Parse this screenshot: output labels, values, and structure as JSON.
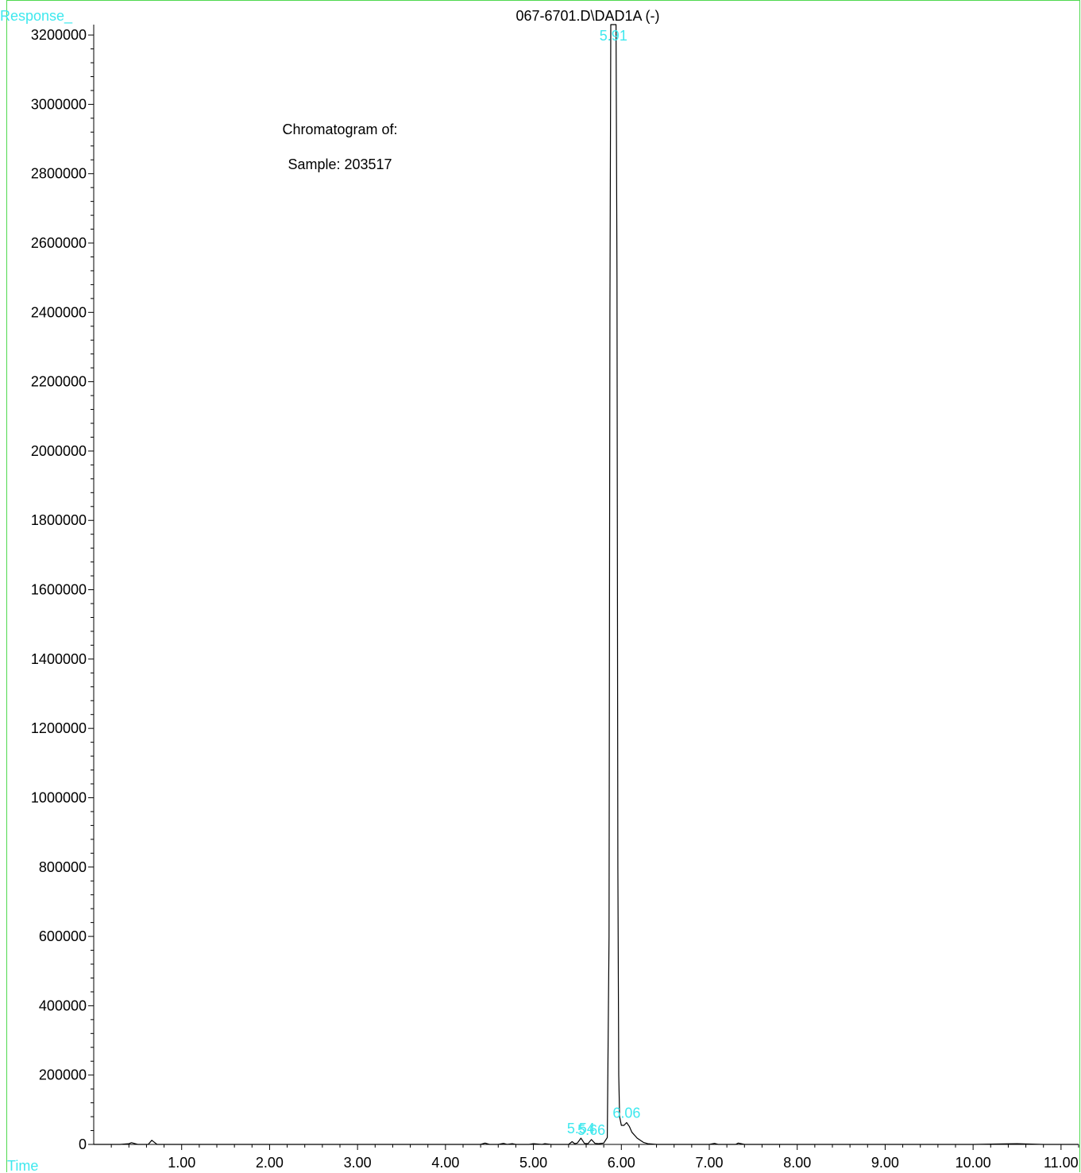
{
  "colors": {
    "frame": "#4ed94e",
    "axis_label": "#3ee8ee",
    "trace": "#000000",
    "peak_label": "#3ee8ee"
  },
  "chart_data": {
    "type": "line",
    "title": "067-6701.D\\DAD1A (-)",
    "ylabel": "Response_",
    "xlabel": "Time",
    "xlim": [
      0,
      11.2
    ],
    "ylim": [
      0,
      3230000
    ],
    "x_ticks": [
      "1.00",
      "2.00",
      "3.00",
      "4.00",
      "5.00",
      "6.00",
      "7.00",
      "8.00",
      "9.00",
      "10.00",
      "11.00"
    ],
    "y_ticks": [
      "0",
      "200000",
      "400000",
      "600000",
      "800000",
      "1000000",
      "1200000",
      "1400000",
      "1600000",
      "1800000",
      "2000000",
      "2200000",
      "2400000",
      "2600000",
      "2800000",
      "3000000",
      "3200000"
    ],
    "annotations": [
      "Chromatogram of:",
      "Sample:  203517"
    ],
    "peak_labels": [
      {
        "text": "5.91",
        "x": 5.91,
        "y": 3230000
      },
      {
        "text": "6.06",
        "x": 6.06,
        "y": 63000
      },
      {
        "text": "5.54",
        "x": 5.54,
        "y": 18000
      },
      {
        "text": "5.66",
        "x": 5.66,
        "y": 14000
      }
    ],
    "series": [
      {
        "x": [
          0.0,
          0.3,
          0.4,
          0.43,
          0.5,
          0.62,
          0.66,
          0.72,
          0.9,
          1.5,
          2.0,
          3.0,
          4.0,
          4.4,
          4.45,
          4.5,
          4.6,
          4.66,
          4.7,
          4.76,
          4.8,
          4.95,
          5.0,
          5.1,
          5.13,
          5.2,
          5.3,
          5.4,
          5.44,
          5.47,
          5.5,
          5.54,
          5.58,
          5.62,
          5.66,
          5.7,
          5.74,
          5.8,
          5.84,
          5.86,
          5.87,
          5.88,
          5.9,
          5.91,
          5.92,
          5.94,
          5.95,
          5.96,
          5.97,
          5.98,
          6.0,
          6.03,
          6.06,
          6.09,
          6.12,
          6.18,
          6.25,
          6.3,
          6.4,
          6.6,
          7.0,
          7.06,
          7.1,
          7.3,
          7.33,
          7.4,
          8.0,
          9.0,
          10.0,
          10.5,
          10.8,
          11.0,
          11.2
        ],
        "y": [
          0,
          0,
          2000,
          5000,
          0,
          0,
          12000,
          0,
          0,
          0,
          0,
          0,
          0,
          0,
          4000,
          0,
          0,
          3000,
          0,
          2000,
          0,
          0,
          2000,
          0,
          2000,
          0,
          0,
          0,
          8000,
          2000,
          4000,
          18000,
          3000,
          2000,
          14000,
          3000,
          2000,
          4000,
          20000,
          600000,
          2400000,
          3230000,
          3230000,
          3230000,
          3230000,
          3230000,
          2500000,
          800000,
          200000,
          80000,
          55000,
          55000,
          63000,
          52000,
          35000,
          18000,
          6000,
          2000,
          0,
          0,
          0,
          3000,
          0,
          0,
          4000,
          0,
          0,
          0,
          0,
          2000,
          0,
          0,
          0
        ]
      }
    ]
  }
}
